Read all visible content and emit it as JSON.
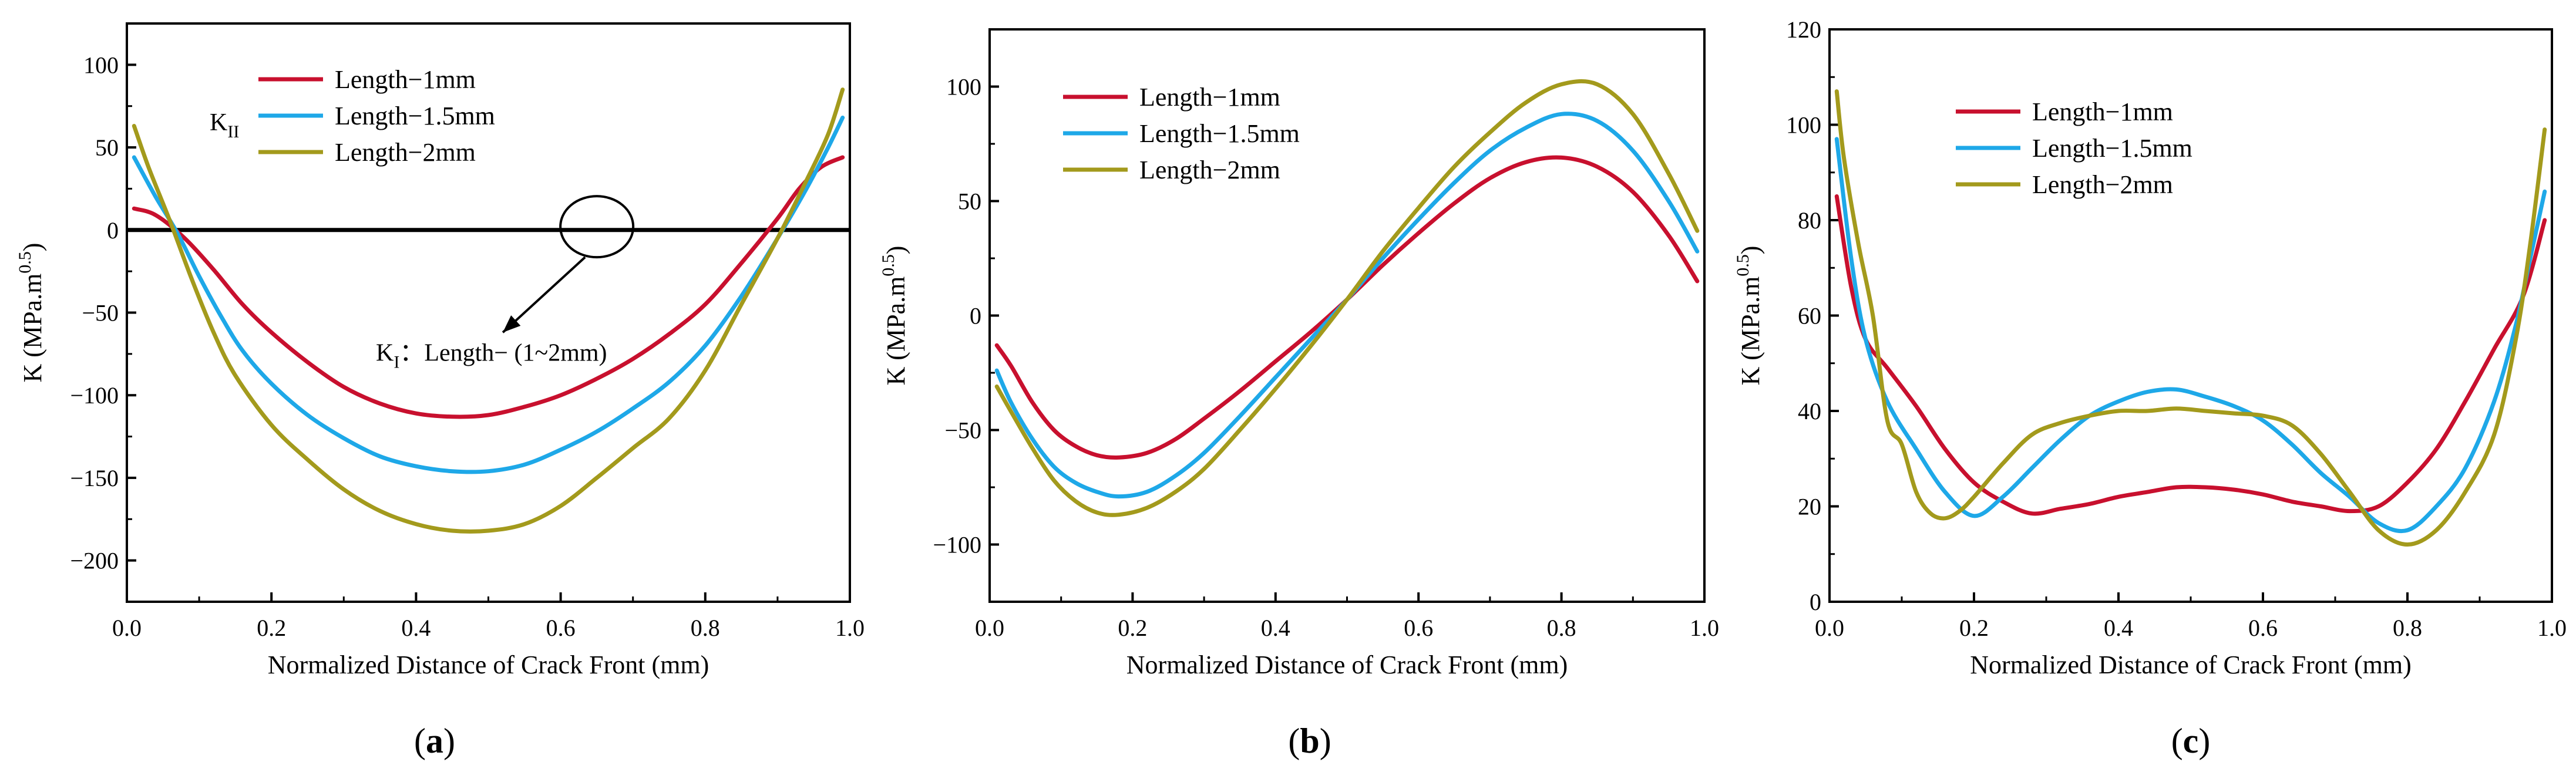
{
  "colors": {
    "red": "#c8102e",
    "blue": "#1ea8e8",
    "olive": "#a39a1c",
    "axis": "#000000"
  },
  "chart_data": [
    {
      "type": "line",
      "panel_label": "a",
      "xlabel": "Normalized Distance of Crack Front (mm)",
      "ylabel": {
        "main": "K (MPa.m",
        "sup": "0.5",
        "close": ")"
      },
      "xlim": [
        0.0,
        1.0
      ],
      "ylim": [
        -225,
        125
      ],
      "xticks": [
        0.0,
        0.2,
        0.4,
        0.6,
        0.8,
        1.0
      ],
      "xtick_labels": [
        "0.0",
        "0.2",
        "0.4",
        "0.6",
        "0.8",
        "1.0"
      ],
      "yticks": [
        -200,
        -150,
        -100,
        -50,
        0,
        50,
        100
      ],
      "ytick_labels": [
        "−200",
        "−150",
        "−100",
        "−50",
        "0",
        "50",
        "100"
      ],
      "legend": {
        "position": "top-left",
        "entries": [
          "Length−1mm",
          "Length−1.5mm",
          "Length−2mm"
        ]
      },
      "annotations": {
        "k2_label": {
          "main": "K",
          "sub": "II"
        },
        "k1_label": {
          "main": "K",
          "sub": "I",
          "rest": "：Length− (1~2mm)"
        }
      },
      "reference_line": {
        "name": "K_I (all lengths)",
        "y": 0
      },
      "ellipse_at": {
        "x": 0.65,
        "y": 2
      },
      "arrow_to": {
        "x": 0.52,
        "y": -62
      },
      "series": [
        {
          "name": "Length−1mm",
          "color": "red",
          "x": [
            0.01,
            0.04,
            0.08,
            0.12,
            0.16,
            0.2,
            0.25,
            0.3,
            0.35,
            0.4,
            0.45,
            0.5,
            0.55,
            0.6,
            0.65,
            0.7,
            0.75,
            0.8,
            0.85,
            0.9,
            0.93,
            0.96,
            0.99
          ],
          "y": [
            13,
            9,
            -5,
            -24,
            -45,
            -62,
            -80,
            -95,
            -105,
            -111,
            -113,
            -112,
            -107,
            -100,
            -90,
            -78,
            -63,
            -45,
            -20,
            7,
            25,
            38,
            44
          ]
        },
        {
          "name": "Length−1.5mm",
          "color": "blue",
          "x": [
            0.01,
            0.04,
            0.07,
            0.1,
            0.13,
            0.16,
            0.2,
            0.25,
            0.3,
            0.35,
            0.4,
            0.45,
            0.5,
            0.55,
            0.6,
            0.65,
            0.7,
            0.75,
            0.8,
            0.85,
            0.9,
            0.94,
            0.97,
            0.99
          ],
          "y": [
            44,
            20,
            -2,
            -28,
            -52,
            -73,
            -93,
            -112,
            -126,
            -137,
            -143,
            -146,
            -146,
            -142,
            -133,
            -122,
            -108,
            -92,
            -70,
            -40,
            -5,
            25,
            50,
            68
          ]
        },
        {
          "name": "Length−2mm",
          "color": "olive",
          "x": [
            0.01,
            0.03,
            0.06,
            0.09,
            0.12,
            0.15,
            0.2,
            0.25,
            0.3,
            0.35,
            0.4,
            0.45,
            0.5,
            0.55,
            0.6,
            0.65,
            0.7,
            0.75,
            0.8,
            0.85,
            0.9,
            0.94,
            0.97,
            0.99
          ],
          "y": [
            63,
            38,
            5,
            -30,
            -62,
            -88,
            -118,
            -139,
            -157,
            -170,
            -178,
            -182,
            -182,
            -178,
            -167,
            -150,
            -132,
            -114,
            -85,
            -45,
            -5,
            30,
            58,
            85
          ]
        }
      ]
    },
    {
      "type": "line",
      "panel_label": "b",
      "xlabel": "Normalized Distance of Crack Front (mm)",
      "ylabel": {
        "main": "K (MPa.m",
        "sup": "0.5",
        "close": ")"
      },
      "xlim": [
        0.0,
        1.0
      ],
      "ylim": [
        -125,
        125
      ],
      "xticks": [
        0.0,
        0.2,
        0.4,
        0.6,
        0.8,
        1.0
      ],
      "xtick_labels": [
        "0.0",
        "0.2",
        "0.4",
        "0.6",
        "0.8",
        "1.0"
      ],
      "yticks": [
        -100,
        -50,
        0,
        50,
        100
      ],
      "ytick_labels": [
        "−100",
        "−50",
        "0",
        "50",
        "100"
      ],
      "legend": {
        "position": "top-left",
        "entries": [
          "Length−1mm",
          "Length−1.5mm",
          "Length−2mm"
        ]
      },
      "series": [
        {
          "name": "Length−1mm",
          "color": "red",
          "x": [
            0.01,
            0.03,
            0.06,
            0.09,
            0.12,
            0.15,
            0.18,
            0.22,
            0.26,
            0.3,
            0.35,
            0.4,
            0.45,
            0.5,
            0.55,
            0.6,
            0.65,
            0.7,
            0.75,
            0.8,
            0.85,
            0.9,
            0.95,
            0.99
          ],
          "y": [
            -13,
            -22,
            -38,
            -50,
            -57,
            -61,
            -62,
            -60,
            -54,
            -45,
            -33,
            -20,
            -7,
            7,
            22,
            36,
            49,
            60,
            67,
            69,
            65,
            54,
            35,
            15
          ]
        },
        {
          "name": "Length−1.5mm",
          "color": "blue",
          "x": [
            0.01,
            0.03,
            0.06,
            0.09,
            0.12,
            0.15,
            0.18,
            0.22,
            0.26,
            0.3,
            0.35,
            0.4,
            0.45,
            0.5,
            0.55,
            0.6,
            0.65,
            0.7,
            0.75,
            0.8,
            0.85,
            0.9,
            0.95,
            0.99
          ],
          "y": [
            -24,
            -38,
            -54,
            -66,
            -73,
            -77,
            -79,
            -77,
            -70,
            -60,
            -44,
            -27,
            -10,
            7,
            25,
            42,
            58,
            72,
            82,
            88,
            85,
            72,
            50,
            28
          ]
        },
        {
          "name": "Length−2mm",
          "color": "olive",
          "x": [
            0.01,
            0.03,
            0.06,
            0.09,
            0.12,
            0.15,
            0.18,
            0.22,
            0.26,
            0.3,
            0.35,
            0.4,
            0.45,
            0.5,
            0.55,
            0.6,
            0.65,
            0.7,
            0.75,
            0.8,
            0.85,
            0.9,
            0.95,
            0.99
          ],
          "y": [
            -31,
            -42,
            -58,
            -72,
            -81,
            -86,
            -87,
            -84,
            -77,
            -67,
            -50,
            -32,
            -13,
            7,
            28,
            47,
            65,
            80,
            93,
            101,
            101,
            88,
            62,
            37
          ]
        }
      ]
    },
    {
      "type": "line",
      "panel_label": "c",
      "xlabel": "Normalized Distance of Crack Front (mm)",
      "ylabel": {
        "main": "K (MPa.m",
        "sup": "0.5",
        "close": ")"
      },
      "xlim": [
        0.0,
        1.0
      ],
      "ylim": [
        0,
        120
      ],
      "xticks": [
        0.0,
        0.2,
        0.4,
        0.6,
        0.8,
        1.0
      ],
      "xtick_labels": [
        "0.0",
        "0.2",
        "0.4",
        "0.6",
        "0.8",
        "1.0"
      ],
      "yticks": [
        0,
        20,
        40,
        60,
        80,
        100,
        120
      ],
      "ytick_labels": [
        "0",
        "20",
        "40",
        "60",
        "80",
        "100",
        "120"
      ],
      "legend": {
        "position": "top-center",
        "entries": [
          "Length−1mm",
          "Length−1.5mm",
          "Length−2mm"
        ]
      },
      "series": [
        {
          "name": "Length−1mm",
          "color": "red",
          "x": [
            0.01,
            0.03,
            0.05,
            0.08,
            0.12,
            0.16,
            0.2,
            0.24,
            0.28,
            0.32,
            0.36,
            0.4,
            0.44,
            0.48,
            0.52,
            0.56,
            0.6,
            0.64,
            0.68,
            0.72,
            0.76,
            0.8,
            0.84,
            0.88,
            0.92,
            0.96,
            0.99
          ],
          "y": [
            85,
            66,
            55,
            49,
            41,
            32,
            25,
            21,
            18.5,
            19.5,
            20.5,
            22,
            23,
            24,
            24,
            23.5,
            22.5,
            21,
            20,
            19,
            20,
            25,
            32,
            42,
            53,
            64,
            80
          ]
        },
        {
          "name": "Length−1.5mm",
          "color": "blue",
          "x": [
            0.01,
            0.03,
            0.05,
            0.08,
            0.12,
            0.16,
            0.2,
            0.24,
            0.28,
            0.32,
            0.36,
            0.4,
            0.44,
            0.48,
            0.52,
            0.56,
            0.6,
            0.64,
            0.68,
            0.72,
            0.76,
            0.8,
            0.84,
            0.88,
            0.92,
            0.95,
            0.97,
            0.99
          ],
          "y": [
            97,
            72,
            55,
            42,
            32,
            23,
            18,
            22,
            28,
            34,
            39,
            42,
            44,
            44.5,
            43,
            41,
            38,
            33,
            27,
            22,
            16.5,
            15,
            20,
            28,
            42,
            58,
            72,
            86
          ]
        },
        {
          "name": "Length−2mm",
          "color": "olive",
          "x": [
            0.01,
            0.02,
            0.04,
            0.06,
            0.08,
            0.1,
            0.12,
            0.14,
            0.16,
            0.18,
            0.2,
            0.24,
            0.28,
            0.32,
            0.36,
            0.4,
            0.44,
            0.48,
            0.52,
            0.56,
            0.6,
            0.64,
            0.68,
            0.72,
            0.76,
            0.8,
            0.84,
            0.88,
            0.92,
            0.95,
            0.97,
            0.99
          ],
          "y": [
            107,
            93,
            75,
            60,
            38,
            33,
            23,
            18.5,
            17.5,
            19,
            22,
            29,
            35,
            37.5,
            39,
            40,
            40,
            40.5,
            40,
            39.5,
            39,
            37,
            31,
            23,
            15,
            12,
            15,
            23,
            35,
            55,
            75,
            99
          ]
        }
      ]
    }
  ]
}
